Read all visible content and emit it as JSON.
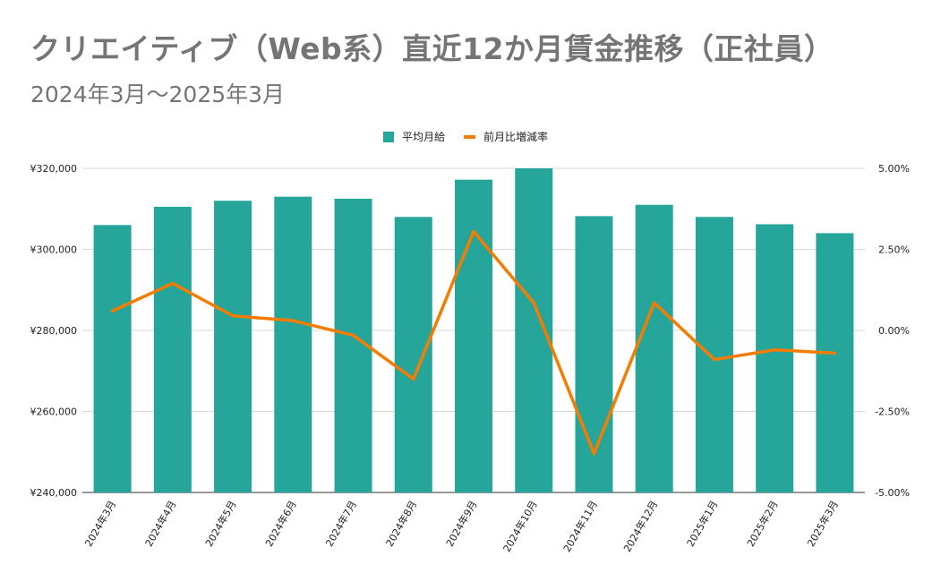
{
  "colors": {
    "bar": "#26A69A",
    "line": "#F57C00",
    "grid": "#d9d9d9",
    "title": "#757575"
  },
  "chart_data": {
    "type": "bar",
    "title": "クリエイティブ（Web系）直近12か月賃金推移（正社員）",
    "subtitle": "2024年3月～2025年3月",
    "categories": [
      "2024年3月",
      "2024年4月",
      "2024年5月",
      "2024年6月",
      "2024年7月",
      "2024年8月",
      "2024年9月",
      "2024年10月",
      "2024年11月",
      "2024年12月",
      "2025年1月",
      "2025年2月",
      "2025年3月"
    ],
    "series": [
      {
        "name": "平均月給",
        "type": "bar",
        "axis": "left",
        "values": [
          306000,
          310500,
          312000,
          313000,
          312500,
          308000,
          317200,
          320000,
          308200,
          311000,
          308000,
          306200,
          304000
        ]
      },
      {
        "name": "前月比増減率",
        "type": "line",
        "axis": "right",
        "values": [
          0.6,
          1.45,
          0.45,
          0.3,
          -0.15,
          -1.5,
          3.05,
          0.85,
          -3.8,
          0.85,
          -0.9,
          -0.6,
          -0.7
        ]
      }
    ],
    "y_left": {
      "min": 240000,
      "max": 320000,
      "ticks": [
        240000,
        260000,
        280000,
        300000,
        320000
      ],
      "tick_labels": [
        "¥240,000",
        "¥260,000",
        "¥280,000",
        "¥300,000",
        "¥320,000"
      ]
    },
    "y_right": {
      "min": -5,
      "max": 5,
      "ticks": [
        -5,
        -2.5,
        0,
        2.5,
        5
      ],
      "tick_labels": [
        "-5.00%",
        "-2.50%",
        "0.00%",
        "2.50%",
        "5.00%"
      ]
    },
    "legend": {
      "position": "top",
      "items": [
        "平均月給",
        "前月比増減率"
      ]
    },
    "grid": true
  }
}
